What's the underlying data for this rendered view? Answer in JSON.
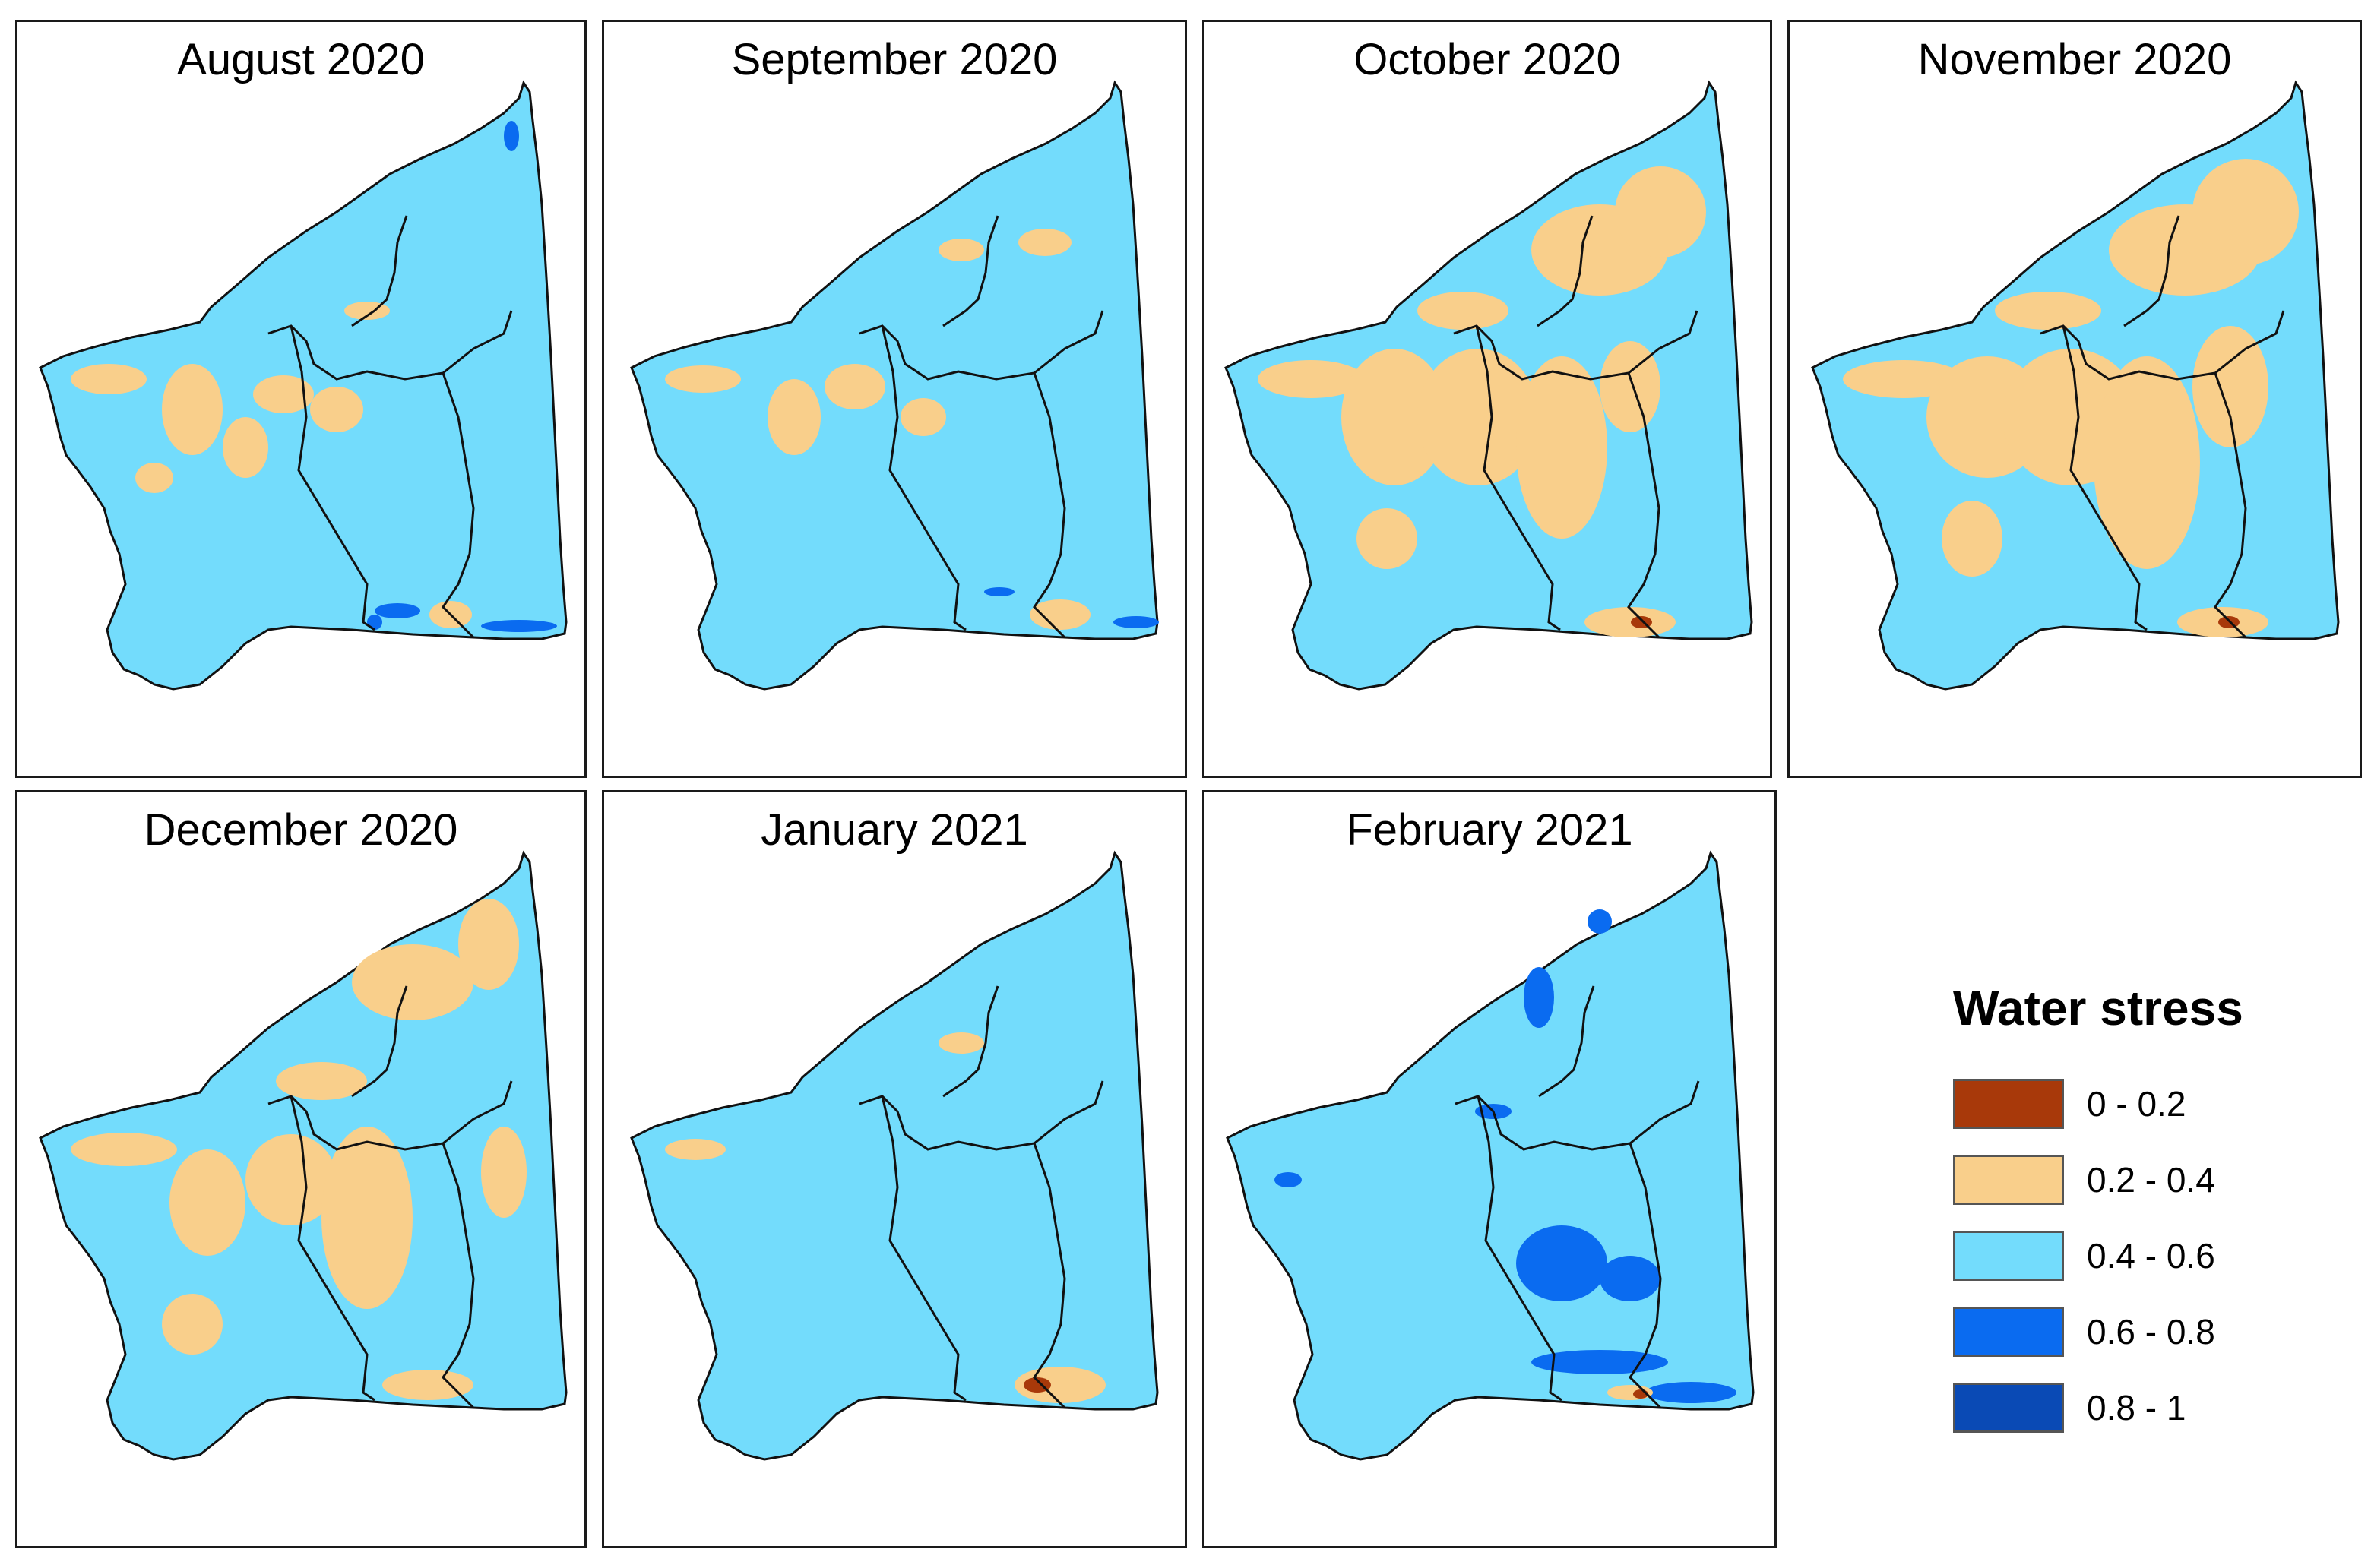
{
  "legend": {
    "title": "Water stress",
    "classes": [
      {
        "label": "0 - 0.2",
        "color": "#a8390a"
      },
      {
        "label": "0.2 - 0.4",
        "color": "#f9cf8b"
      },
      {
        "label": "0.4 - 0.6",
        "color": "#73dcfc"
      },
      {
        "label": "0.6 - 0.8",
        "color": "#0a6bf0"
      },
      {
        "label": "0.8 - 1",
        "color": "#0a4ab5"
      }
    ]
  },
  "panels": [
    {
      "title": "August 2020"
    },
    {
      "title": "September 2020"
    },
    {
      "title": "October 2020"
    },
    {
      "title": "November 2020"
    },
    {
      "title": "December 2020"
    },
    {
      "title": "January 2021"
    },
    {
      "title": "February 2021"
    }
  ]
}
